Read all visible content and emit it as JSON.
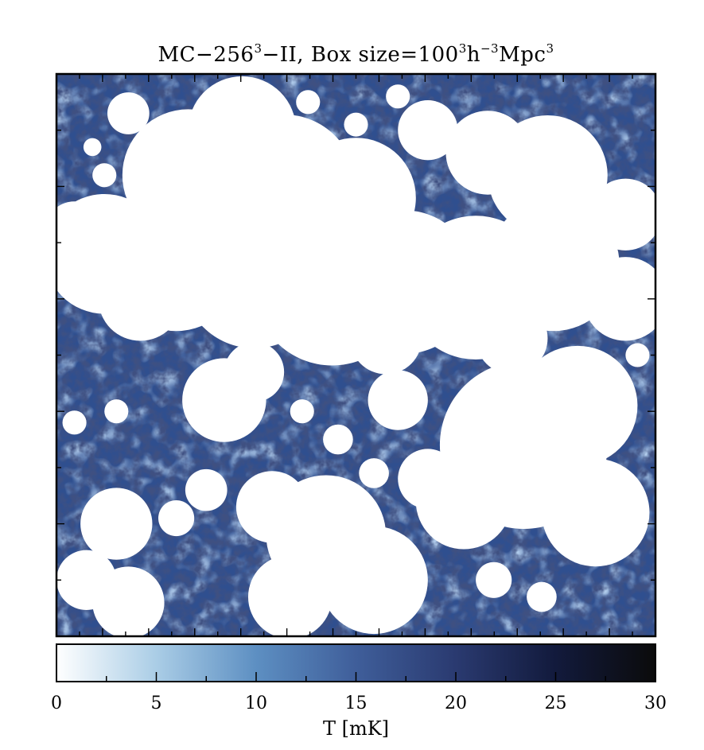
{
  "title": {
    "text_a": "MC−256",
    "sup_a": "3",
    "text_b": "−II, Box size=100",
    "sup_b": "3",
    "text_c": "h",
    "sup_c": "−3",
    "text_d": "Mpc",
    "sup_d": "3"
  },
  "chart_data": {
    "type": "heatmap",
    "description_units": "brightness temperature map of a simulation slice",
    "colorbar": {
      "label": "T [mK]",
      "range": [
        0,
        30
      ],
      "ticks": [
        0,
        5,
        10,
        15,
        20,
        25,
        30
      ],
      "colors": [
        "#ffffff",
        "#aacde6",
        "#5d8fc2",
        "#3f5e9a",
        "#2a3a70",
        "#121a3c",
        "#0b0b0b"
      ]
    },
    "ionized_color": "#ffffff",
    "grid": false
  }
}
